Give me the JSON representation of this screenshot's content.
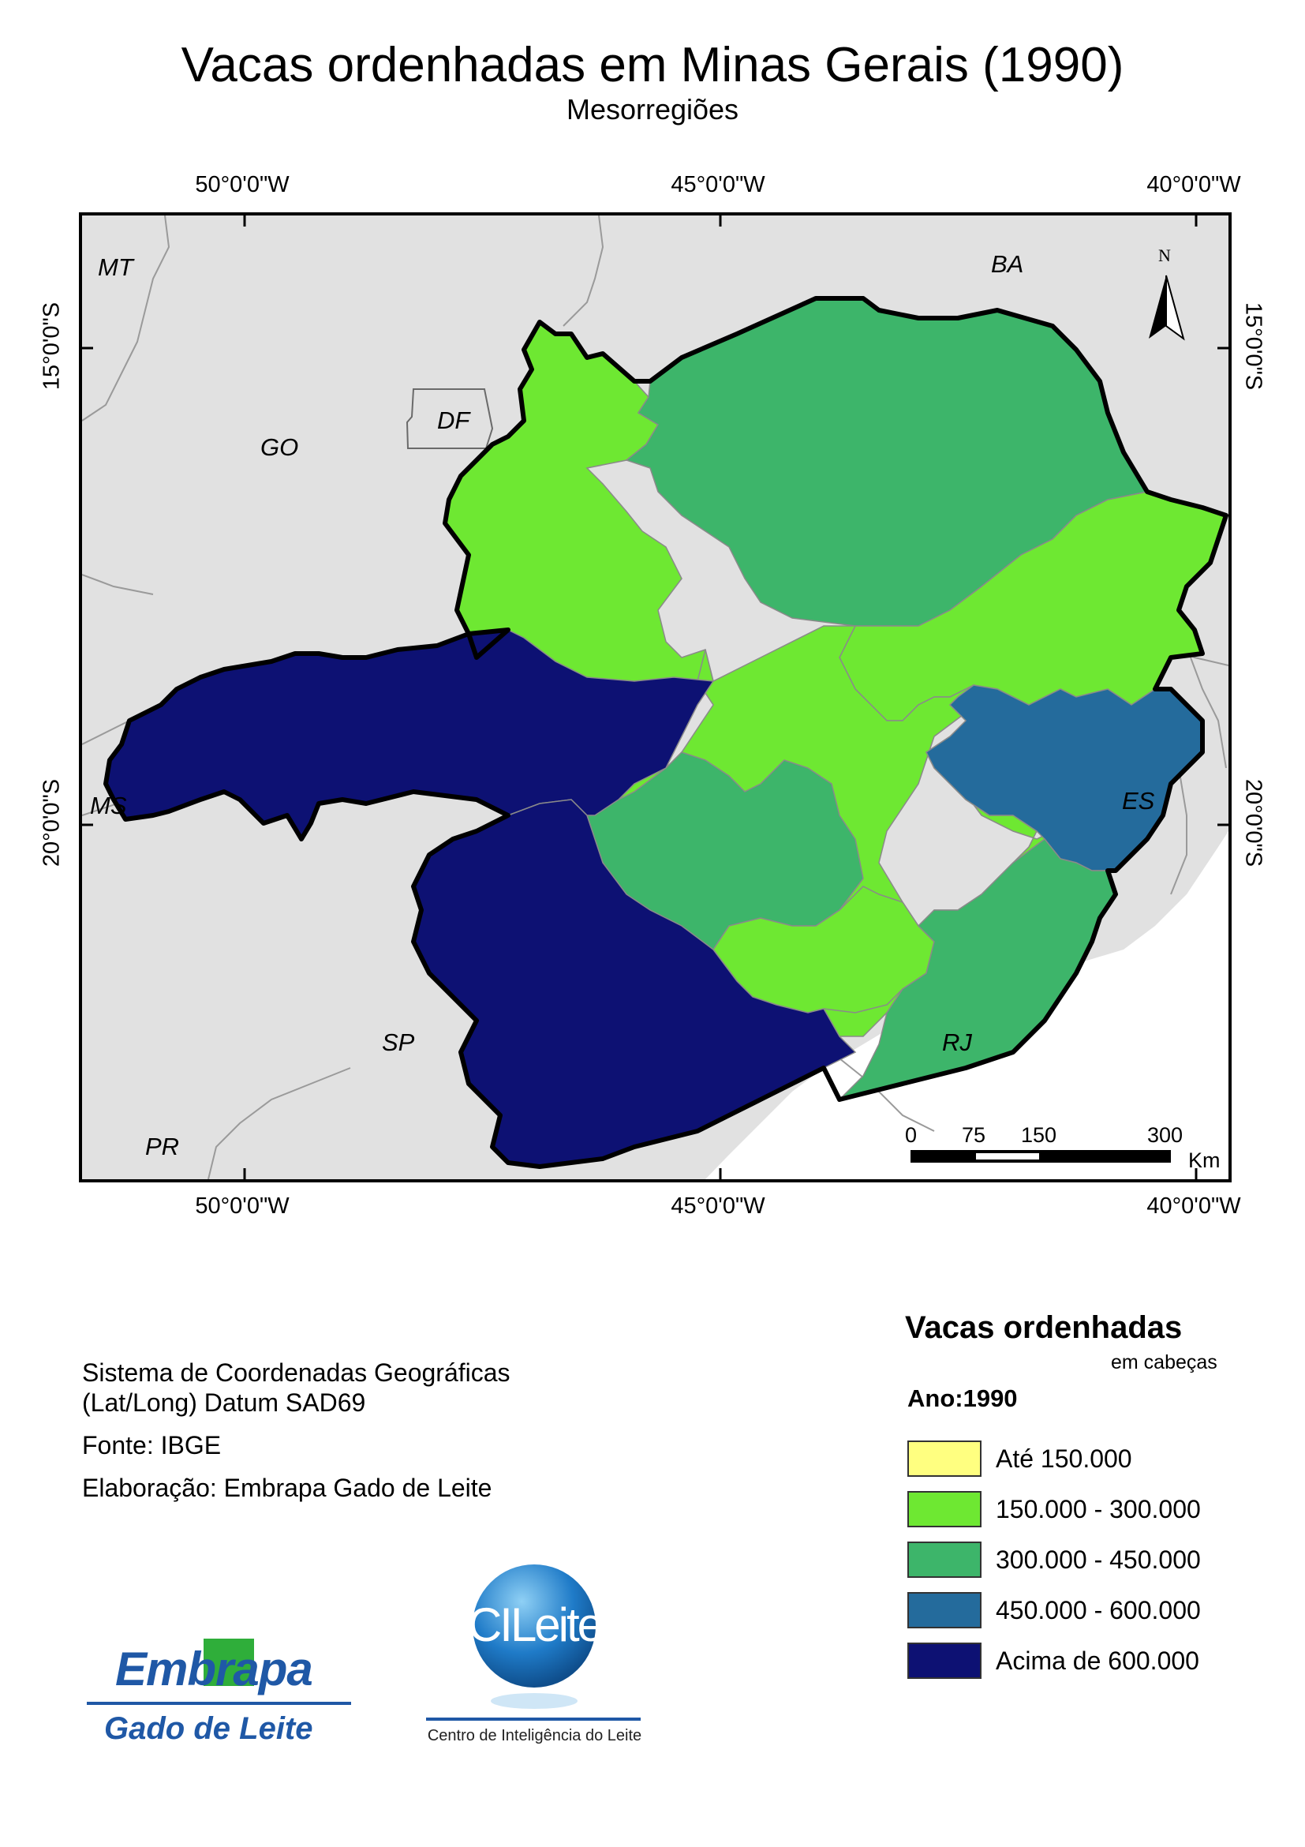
{
  "title": "Vacas ordenhadas em Minas Gerais (1990)",
  "subtitle": "Mesorregiões",
  "graticule": {
    "longitudes": [
      "50°0'0\"W",
      "45°0'0\"W",
      "40°0'0\"W"
    ],
    "latitudes": [
      "15°0'0\"S",
      "20°0'0\"S"
    ]
  },
  "states": {
    "mt": "MT",
    "ba": "BA",
    "go": "GO",
    "df": "DF",
    "ms": "MS",
    "es": "ES",
    "sp": "SP",
    "rj": "RJ",
    "pr": "PR"
  },
  "north_arrow": {
    "label": "N"
  },
  "scale_bar": {
    "ticks": [
      "0",
      "75",
      "150",
      "300"
    ],
    "unit": "Km"
  },
  "info": {
    "coords_line1": "Sistema de Coordenadas Geográficas",
    "coords_line2": "(Lat/Long) Datum SAD69",
    "source": "Fonte: IBGE",
    "author": "Elaboração: Embrapa Gado de Leite"
  },
  "legend": {
    "title": "Vacas ordenhadas",
    "units": "em cabeças",
    "year": "Ano:1990",
    "classes": [
      {
        "label": "Até 150.000",
        "color": "#ffff80"
      },
      {
        "label": "150.000 - 300.000",
        "color": "#6ee832"
      },
      {
        "label": "300.000 - 450.000",
        "color": "#3db56a"
      },
      {
        "label": "450.000 - 600.000",
        "color": "#246b9c"
      },
      {
        "label": "Acima de 600.000",
        "color": "#0d1173"
      }
    ]
  },
  "logos": {
    "embrapa_name": "Embrapa",
    "embrapa_unit": "Gado de Leite",
    "cileite_name": "CILeite",
    "cileite_caption": "Centro de Inteligência do Leite"
  },
  "colors": {
    "background_land": "#e1e1e1",
    "border": "#000000"
  }
}
